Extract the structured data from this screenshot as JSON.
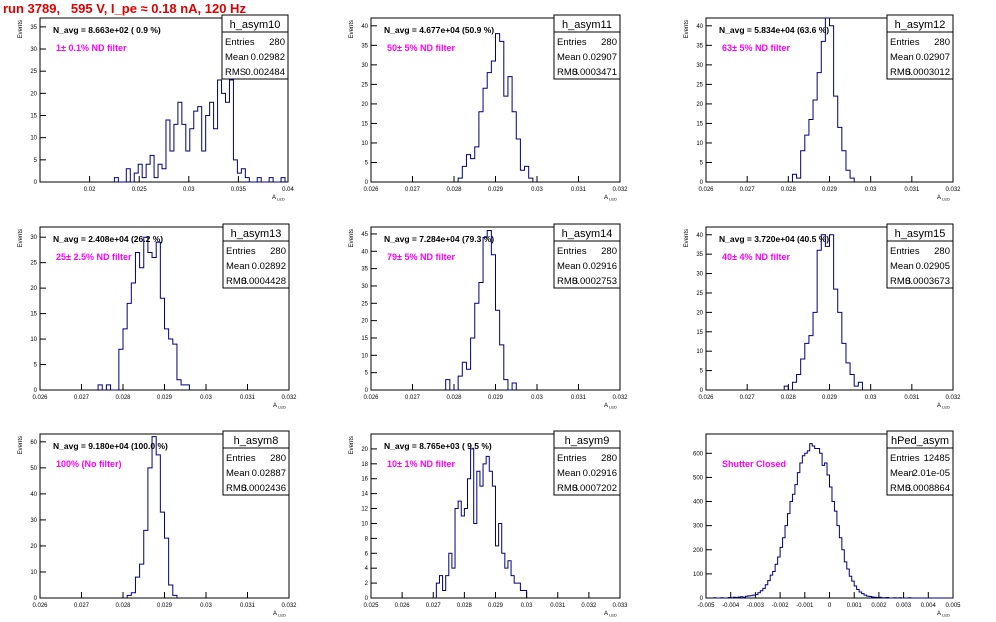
{
  "header": {
    "title": "run 3789,   595 V, I_pe ≈ 0.18 nA, 120 Hz"
  },
  "colors": {
    "histogram": "#000080",
    "annotation": "#ff00ff",
    "title": "#e00000",
    "axis": "#000000"
  },
  "chart_data": [
    {
      "type": "histogram",
      "name": "h_asym10",
      "stats_label": "N_avg = 8.663e+02 ( 0.9 %)",
      "annotation": "1± 0.1% ND filter",
      "entries": "280",
      "mean": "0.02982",
      "rms": "0.002484",
      "xlabel": "A_LED",
      "ylabel": "Events",
      "xlim": [
        0.015,
        0.04
      ],
      "ylim": [
        0,
        37
      ],
      "xticks": [
        "0.02",
        "0.025",
        "0.03",
        "0.035",
        "0.04"
      ],
      "xtick_values": [
        0.02,
        0.025,
        0.03,
        0.035,
        0.04
      ],
      "yticks": [
        "0",
        "5",
        "10",
        "15",
        "20",
        "25",
        "30",
        "35"
      ],
      "ytick_values": [
        0,
        5,
        10,
        15,
        20,
        25,
        30,
        35
      ],
      "bin_start": 0.0225,
      "bin_width": 0.0004,
      "counts": [
        1,
        0,
        0,
        3,
        0,
        2,
        4,
        1,
        4,
        6,
        1,
        4,
        3,
        14,
        7,
        13,
        18,
        13,
        7,
        12,
        16,
        17,
        7,
        15,
        18,
        12,
        23,
        20,
        18,
        23,
        5,
        2,
        3,
        1,
        0,
        0,
        1,
        0,
        0,
        1,
        0,
        0,
        1
      ]
    },
    {
      "type": "histogram",
      "name": "h_asym11",
      "stats_label": "N_avg = 4.677e+04 (50.9 %)",
      "annotation": "50± 5% ND filter",
      "entries": "280",
      "mean": "0.02907",
      "rms": "0.0003471",
      "xlabel": "A_LED",
      "ylabel": "Events",
      "xlim": [
        0.026,
        0.032
      ],
      "ylim": [
        0,
        42
      ],
      "xticks": [
        "0.026",
        "0.027",
        "0.028",
        "0.029",
        "0.03",
        "0.031",
        "0.032"
      ],
      "xtick_values": [
        0.026,
        0.027,
        0.028,
        0.029,
        0.03,
        0.031,
        0.032
      ],
      "yticks": [
        "0",
        "5",
        "10",
        "15",
        "20",
        "25",
        "30",
        "35",
        "40"
      ],
      "ytick_values": [
        0,
        5,
        10,
        15,
        20,
        25,
        30,
        35,
        40
      ],
      "bin_start": 0.0281,
      "bin_width": 0.0001,
      "counts": [
        1,
        4,
        7,
        6,
        9,
        18,
        24,
        28,
        31,
        38,
        36,
        22,
        27,
        18,
        11,
        3,
        4,
        1
      ]
    },
    {
      "type": "histogram",
      "name": "h_asym12",
      "stats_label": "N_avg = 5.834e+04 (63.6 %)",
      "annotation": "63± 5% ND filter",
      "entries": "280",
      "mean": "0.02907",
      "rms": "0.0003012",
      "xlabel": "A_LED",
      "ylabel": "Events",
      "xlim": [
        0.026,
        0.032
      ],
      "ylim": [
        0,
        42
      ],
      "xticks": [
        "0.026",
        "0.027",
        "0.028",
        "0.029",
        "0.03",
        "0.031",
        "0.032"
      ],
      "xtick_values": [
        0.026,
        0.027,
        0.028,
        0.029,
        0.03,
        0.031,
        0.032
      ],
      "yticks": [
        "0",
        "5",
        "10",
        "15",
        "20",
        "25",
        "30",
        "35",
        "40"
      ],
      "ytick_values": [
        0,
        5,
        10,
        15,
        20,
        25,
        30,
        35,
        40
      ],
      "bin_start": 0.0281,
      "bin_width": 0.0001,
      "counts": [
        2,
        1,
        8,
        12,
        16,
        21,
        28,
        36,
        42,
        40,
        22,
        14,
        8,
        3,
        1
      ]
    },
    {
      "type": "histogram",
      "name": "h_asym13",
      "stats_label": "N_avg = 2.408e+04 (26.2 %)",
      "annotation": "25± 2.5% ND filter",
      "entries": "280",
      "mean": "0.02892",
      "rms": "0.0004428",
      "xlabel": "A_LED",
      "ylabel": "Events",
      "xlim": [
        0.026,
        0.032
      ],
      "ylim": [
        0,
        32
      ],
      "xticks": [
        "0.026",
        "0.027",
        "0.028",
        "0.029",
        "0.03",
        "0.031",
        "0.032"
      ],
      "xtick_values": [
        0.026,
        0.027,
        0.028,
        0.029,
        0.03,
        0.031,
        0.032
      ],
      "yticks": [
        "0",
        "5",
        "10",
        "15",
        "20",
        "25",
        "30"
      ],
      "ytick_values": [
        0,
        5,
        10,
        15,
        20,
        25,
        30
      ],
      "bin_start": 0.0274,
      "bin_width": 0.0001,
      "counts": [
        1,
        0,
        1,
        0,
        0,
        8,
        12,
        17,
        21,
        27,
        24,
        30,
        27,
        26,
        29,
        18,
        12,
        10,
        9,
        2,
        1,
        1
      ]
    },
    {
      "type": "histogram",
      "name": "h_asym14",
      "stats_label": "N_avg = 7.284e+04 (79.3 %)",
      "annotation": "79± 5% ND filter",
      "entries": "280",
      "mean": "0.02916",
      "rms": "0.0002753",
      "xlabel": "A_LED",
      "ylabel": "Events",
      "xlim": [
        0.026,
        0.032
      ],
      "ylim": [
        0,
        47
      ],
      "xticks": [
        "0.026",
        "0.027",
        "0.028",
        "0.029",
        "0.03",
        "0.031",
        "0.032"
      ],
      "xtick_values": [
        0.026,
        0.027,
        0.028,
        0.029,
        0.03,
        0.031,
        0.032
      ],
      "yticks": [
        "0",
        "5",
        "10",
        "15",
        "20",
        "25",
        "30",
        "35",
        "40",
        "45"
      ],
      "ytick_values": [
        0,
        5,
        10,
        15,
        20,
        25,
        30,
        35,
        40,
        45
      ],
      "bin_start": 0.0278,
      "bin_width": 0.0001,
      "counts": [
        3,
        0,
        0,
        4,
        8,
        6,
        15,
        25,
        31,
        44,
        46,
        39,
        23,
        13,
        3,
        0,
        2
      ]
    },
    {
      "type": "histogram",
      "name": "h_asym15",
      "stats_label": "N_avg = 3.720e+04 (40.5 %)",
      "annotation": "40± 4% ND filter",
      "entries": "280",
      "mean": "0.02905",
      "rms": "0.0003673",
      "xlabel": "A_LED",
      "ylabel": "Events",
      "xlim": [
        0.026,
        0.032
      ],
      "ylim": [
        0,
        42
      ],
      "xticks": [
        "0.026",
        "0.027",
        "0.028",
        "0.029",
        "0.03",
        "0.031",
        "0.032"
      ],
      "xtick_values": [
        0.026,
        0.027,
        0.028,
        0.029,
        0.03,
        0.031,
        0.032
      ],
      "yticks": [
        "0",
        "5",
        "10",
        "15",
        "20",
        "25",
        "30",
        "35",
        "40"
      ],
      "ytick_values": [
        0,
        5,
        10,
        15,
        20,
        25,
        30,
        35,
        40
      ],
      "bin_start": 0.0279,
      "bin_width": 0.0001,
      "counts": [
        1,
        0,
        2,
        4,
        8,
        12,
        14,
        20,
        36,
        40,
        37,
        40,
        26,
        20,
        12,
        7,
        4,
        1,
        2
      ]
    },
    {
      "type": "histogram",
      "name": "h_asym8",
      "stats_label": "N_avg = 9.180e+04 (100.0 %)",
      "annotation": "100% (No filter)",
      "entries": "280",
      "mean": "0.02887",
      "rms": "0.0002436",
      "xlabel": "A_LED",
      "ylabel": "Events",
      "xlim": [
        0.026,
        0.032
      ],
      "ylim": [
        0,
        63
      ],
      "xticks": [
        "0.026",
        "0.027",
        "0.028",
        "0.029",
        "0.03",
        "0.031",
        "0.032"
      ],
      "xtick_values": [
        0.026,
        0.027,
        0.028,
        0.029,
        0.03,
        0.031,
        0.032
      ],
      "yticks": [
        "0",
        "10",
        "20",
        "30",
        "40",
        "50",
        "60"
      ],
      "ytick_values": [
        0,
        10,
        20,
        30,
        40,
        50,
        60
      ],
      "bin_start": 0.0281,
      "bin_width": 0.0001,
      "counts": [
        1,
        2,
        8,
        13,
        26,
        50,
        62,
        55,
        33,
        23,
        5,
        1
      ]
    },
    {
      "type": "histogram",
      "name": "h_asym9",
      "stats_label": "N_avg = 8.765e+03 ( 9.5 %)",
      "annotation": "10± 1% ND filter",
      "entries": "280",
      "mean": "0.02916",
      "rms": "0.0007202",
      "xlabel": "A_LED",
      "ylabel": "Events",
      "xlim": [
        0.025,
        0.033
      ],
      "ylim": [
        0,
        22
      ],
      "xticks": [
        "0.025",
        "0.026",
        "0.027",
        "0.028",
        "0.029",
        "0.03",
        "0.031",
        "0.032",
        "0.033"
      ],
      "xtick_values": [
        0.025,
        0.026,
        0.027,
        0.028,
        0.029,
        0.03,
        0.031,
        0.032,
        0.033
      ],
      "yticks": [
        "0",
        "2",
        "4",
        "6",
        "8",
        "10",
        "12",
        "14",
        "16",
        "18",
        "20"
      ],
      "ytick_values": [
        0,
        2,
        4,
        6,
        8,
        10,
        12,
        14,
        16,
        18,
        20
      ],
      "bin_start": 0.0271,
      "bin_width": 0.0001,
      "counts": [
        2,
        3,
        1,
        3,
        6,
        4,
        12,
        13,
        11,
        12,
        16,
        20,
        10,
        17,
        15,
        18,
        19,
        17,
        15,
        7,
        10,
        6,
        4,
        5,
        3,
        2,
        2,
        1,
        1
      ]
    },
    {
      "type": "histogram",
      "name": "hPed_asym",
      "stats_label": "",
      "annotation": "Shutter Closed",
      "entries": "12485",
      "mean": "2.01e-05",
      "rms": "0.0008864",
      "xlabel": "A_LED",
      "ylabel": "",
      "xlim": [
        -0.005,
        0.005
      ],
      "ylim": [
        0,
        680
      ],
      "xticks": [
        "-0.005",
        "-0.004",
        "-0.003",
        "-0.002",
        "-0.001",
        "0",
        "0.001",
        "0.002",
        "0.003",
        "0.004",
        "0.005"
      ],
      "xtick_values": [
        -0.005,
        -0.004,
        -0.003,
        -0.002,
        -0.001,
        0,
        0.001,
        0.002,
        0.003,
        0.004,
        0.005
      ],
      "yticks": [
        "0",
        "100",
        "200",
        "300",
        "400",
        "500",
        "600"
      ],
      "ytick_values": [
        0,
        100,
        200,
        300,
        400,
        500,
        600
      ],
      "bin_start": -0.005,
      "bin_width": 0.0001,
      "counts": [
        0,
        0,
        0,
        1,
        0,
        0,
        1,
        0,
        0,
        2,
        1,
        3,
        2,
        4,
        5,
        3,
        7,
        9,
        10,
        12,
        14,
        22,
        30,
        40,
        55,
        72,
        95,
        110,
        140,
        170,
        210,
        250,
        300,
        350,
        400,
        430,
        470,
        520,
        560,
        590,
        600,
        610,
        640,
        630,
        620,
        620,
        600,
        550,
        560,
        510,
        460,
        400,
        360,
        300,
        250,
        200,
        150,
        120,
        90,
        70,
        50,
        35,
        25,
        18,
        12,
        8,
        6,
        4,
        3,
        2,
        3,
        1,
        1,
        2,
        0,
        0,
        1,
        0,
        1,
        0,
        0,
        0,
        1,
        0,
        0,
        0,
        0,
        0,
        0,
        0,
        0,
        0,
        0,
        0,
        0,
        0,
        0,
        0,
        0,
        0
      ]
    }
  ]
}
